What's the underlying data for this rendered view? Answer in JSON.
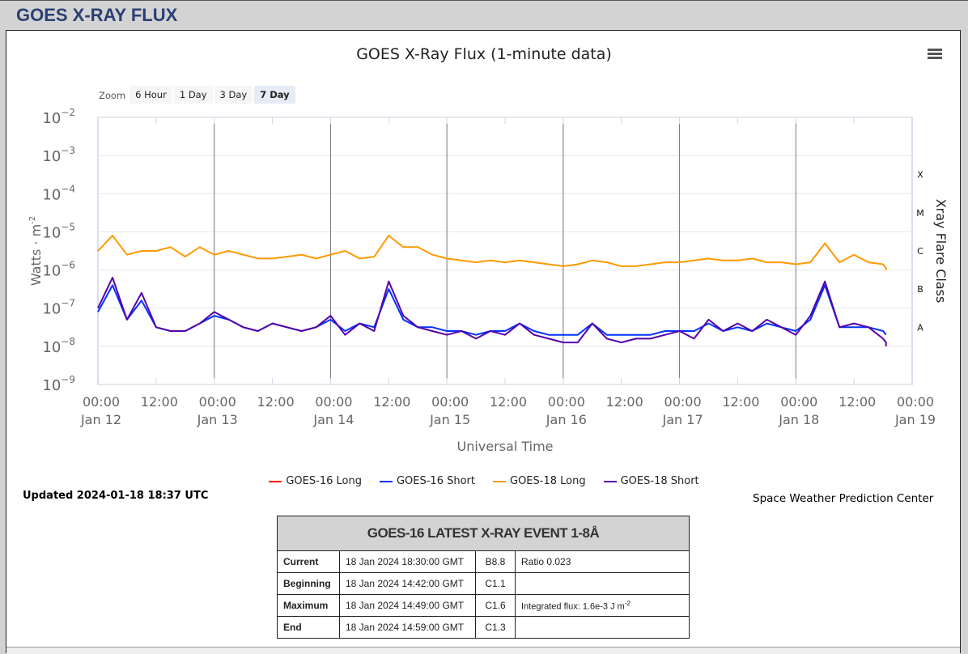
{
  "header": {
    "title": "GOES X-RAY FLUX"
  },
  "zoom": {
    "label": "Zoom",
    "buttons": [
      "6 Hour",
      "1 Day",
      "3 Day",
      "7 Day"
    ],
    "selected": "7 Day"
  },
  "chart_data": {
    "type": "line",
    "title": "GOES X-Ray Flux (1-minute data)",
    "xlabel": "Universal Time",
    "ylabel": "Watts · m",
    "ylabel_sup": "-2",
    "y2label": "Xray Flare Class",
    "yscale": "log",
    "ylim": [
      1e-09,
      0.01
    ],
    "ytick_exponents": [
      -2,
      -3,
      -4,
      -5,
      -6,
      -7,
      -8,
      -9
    ],
    "flare_classes": [
      {
        "label": "X",
        "log": -3.5
      },
      {
        "label": "M",
        "log": -4.5
      },
      {
        "label": "C",
        "log": -5.5
      },
      {
        "label": "B",
        "log": -6.5
      },
      {
        "label": "A",
        "log": -7.5
      }
    ],
    "x_range_hours": [
      0,
      168
    ],
    "x_ticks": [
      {
        "h": 0,
        "t": "00:00",
        "d": "Jan 12"
      },
      {
        "h": 12,
        "t": "12:00",
        "d": ""
      },
      {
        "h": 24,
        "t": "00:00",
        "d": "Jan 13"
      },
      {
        "h": 36,
        "t": "12:00",
        "d": ""
      },
      {
        "h": 48,
        "t": "00:00",
        "d": "Jan 14"
      },
      {
        "h": 60,
        "t": "12:00",
        "d": ""
      },
      {
        "h": 72,
        "t": "00:00",
        "d": "Jan 15"
      },
      {
        "h": 84,
        "t": "12:00",
        "d": ""
      },
      {
        "h": 96,
        "t": "00:00",
        "d": "Jan 16"
      },
      {
        "h": 108,
        "t": "12:00",
        "d": ""
      },
      {
        "h": 120,
        "t": "00:00",
        "d": "Jan 17"
      },
      {
        "h": 132,
        "t": "12:00",
        "d": ""
      },
      {
        "h": 144,
        "t": "00:00",
        "d": "Jan 18"
      },
      {
        "h": 156,
        "t": "12:00",
        "d": ""
      },
      {
        "h": 168,
        "t": "00:00",
        "d": "Jan 19"
      }
    ],
    "x_step_hours": 3,
    "series": [
      {
        "name": "GOES-16 Long",
        "color": "#ff0000",
        "log10_values": []
      },
      {
        "name": "GOES-16 Short",
        "color": "#0033ff",
        "log10_values": [
          -7.1,
          -6.4,
          -7.3,
          -6.8,
          -7.5,
          -7.6,
          -7.6,
          -7.4,
          -7.2,
          -7.3,
          -7.5,
          -7.6,
          -7.4,
          -7.5,
          -7.6,
          -7.5,
          -7.3,
          -7.6,
          -7.4,
          -7.5,
          -6.5,
          -7.3,
          -7.5,
          -7.5,
          -7.6,
          -7.6,
          -7.7,
          -7.6,
          -7.6,
          -7.4,
          -7.6,
          -7.7,
          -7.7,
          -7.7,
          -7.4,
          -7.7,
          -7.7,
          -7.7,
          -7.7,
          -7.6,
          -7.6,
          -7.6,
          -7.4,
          -7.6,
          -7.5,
          -7.6,
          -7.4,
          -7.5,
          -7.6,
          -7.3,
          -6.4,
          -7.5,
          -7.5,
          -7.5,
          -7.6,
          -7.7,
          -7.7
        ]
      },
      {
        "name": "GOES-18 Long",
        "color": "#ff9900",
        "log10_values": [
          -5.5,
          -5.1,
          -5.6,
          -5.5,
          -5.5,
          -5.4,
          -5.65,
          -5.4,
          -5.6,
          -5.5,
          -5.6,
          -5.7,
          -5.7,
          -5.65,
          -5.6,
          -5.7,
          -5.6,
          -5.5,
          -5.7,
          -5.65,
          -5.1,
          -5.4,
          -5.4,
          -5.6,
          -5.7,
          -5.75,
          -5.8,
          -5.75,
          -5.8,
          -5.75,
          -5.8,
          -5.85,
          -5.9,
          -5.85,
          -5.75,
          -5.8,
          -5.9,
          -5.9,
          -5.85,
          -5.8,
          -5.8,
          -5.75,
          -5.7,
          -5.75,
          -5.75,
          -5.7,
          -5.8,
          -5.8,
          -5.85,
          -5.8,
          -5.3,
          -5.8,
          -5.6,
          -5.8,
          -5.85,
          -5.95,
          -6.0
        ]
      },
      {
        "name": "GOES-18 Short",
        "color": "#5500aa",
        "log10_values": [
          -7.0,
          -6.2,
          -7.3,
          -6.6,
          -7.5,
          -7.6,
          -7.6,
          -7.4,
          -7.1,
          -7.3,
          -7.5,
          -7.6,
          -7.4,
          -7.5,
          -7.6,
          -7.5,
          -7.2,
          -7.7,
          -7.4,
          -7.6,
          -6.3,
          -7.2,
          -7.5,
          -7.6,
          -7.7,
          -7.6,
          -7.8,
          -7.6,
          -7.7,
          -7.4,
          -7.7,
          -7.8,
          -7.9,
          -7.9,
          -7.4,
          -7.8,
          -7.9,
          -7.8,
          -7.8,
          -7.7,
          -7.6,
          -7.8,
          -7.3,
          -7.6,
          -7.4,
          -7.6,
          -7.3,
          -7.5,
          -7.7,
          -7.2,
          -6.3,
          -7.5,
          -7.4,
          -7.5,
          -7.8,
          -7.9,
          -8.0
        ]
      }
    ]
  },
  "updated": "Updated 2024-01-18 18:37 UTC",
  "credit": "Space Weather Prediction Center",
  "event_table": {
    "title": "GOES-16 LATEST X-RAY EVENT 1-8Å",
    "rows": [
      {
        "label": "Current",
        "time": "18 Jan 2024 18:30:00 GMT",
        "class": "B8.8",
        "note": "Ratio 0.023",
        "sup": ""
      },
      {
        "label": "Beginning",
        "time": "18 Jan 2024 14:42:00 GMT",
        "class": "C1.1",
        "note": "",
        "sup": ""
      },
      {
        "label": "Maximum",
        "time": "18 Jan 2024 14:49:00 GMT",
        "class": "C1.6",
        "note": "Integrated flux: 1.6e-3 J m",
        "sup": "-2"
      },
      {
        "label": "End",
        "time": "18 Jan 2024 14:59:00 GMT",
        "class": "C1.3",
        "note": "",
        "sup": ""
      }
    ]
  }
}
